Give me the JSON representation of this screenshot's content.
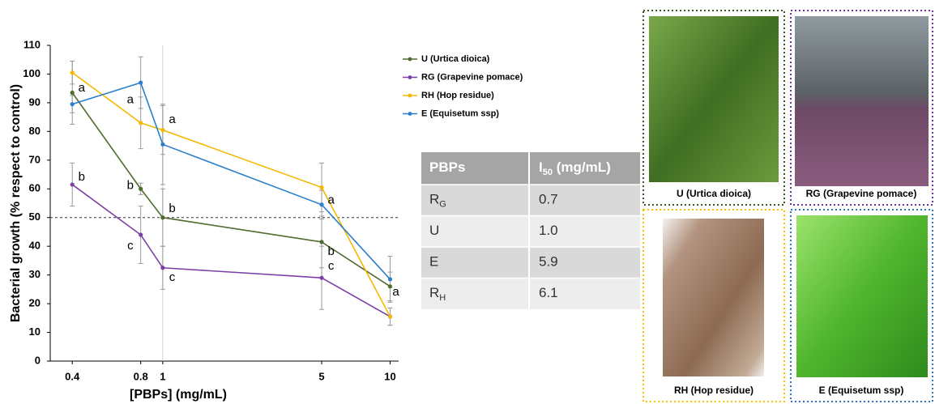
{
  "chart_data": {
    "type": "line",
    "xscale": "log",
    "x": [
      0.4,
      0.8,
      1,
      5,
      10
    ],
    "xlim": [
      0.32,
      10.9
    ],
    "xticks": [
      0.4,
      0.8,
      1,
      5,
      10
    ],
    "ylim": [
      0,
      110
    ],
    "yticks": [
      0,
      10,
      20,
      30,
      40,
      50,
      60,
      70,
      80,
      90,
      100,
      110
    ],
    "xlabel": "[PBPs] (mg/mL)",
    "ylabel": "Bacterial growth (% respect to control)",
    "hline": 50,
    "vline": 1,
    "series": [
      {
        "name": "U (Urtica dioica)",
        "color": "#4f6b2f",
        "values": [
          93.5,
          60,
          50,
          41.5,
          26
        ],
        "errors": [
          11,
          2,
          10,
          9,
          5
        ]
      },
      {
        "name": "RG (Grapevine pomace)",
        "color": "#7d3fa6",
        "values": [
          61.5,
          44,
          32.5,
          29,
          15.5
        ],
        "errors": [
          7.5,
          10,
          7.5,
          11,
          3
        ]
      },
      {
        "name": "RH (Hop residue)",
        "color": "#f5b800",
        "values": [
          100.5,
          83,
          80.5,
          60.5,
          15.5
        ],
        "errors": [
          4,
          9,
          8.5,
          8.5,
          3
        ]
      },
      {
        "name": "E (Equisetum ssp)",
        "color": "#2a7fc9",
        "values": [
          89.5,
          97,
          75.5,
          54.5,
          28.5
        ],
        "errors": [
          3,
          9,
          14,
          5,
          8
        ]
      }
    ],
    "annotations": [
      {
        "text": "a",
        "x": 0.44,
        "y": 95
      },
      {
        "text": "b",
        "x": 0.44,
        "y": 64
      },
      {
        "text": "a",
        "x": 0.72,
        "y": 91
      },
      {
        "text": "b",
        "x": 0.72,
        "y": 61
      },
      {
        "text": "c",
        "x": 0.72,
        "y": 40
      },
      {
        "text": "a",
        "x": 1.1,
        "y": 84
      },
      {
        "text": "b",
        "x": 1.1,
        "y": 53
      },
      {
        "text": "c",
        "x": 1.1,
        "y": 29
      },
      {
        "text": "a",
        "x": 5.5,
        "y": 56
      },
      {
        "text": "b",
        "x": 5.5,
        "y": 38
      },
      {
        "text": "c",
        "x": 5.5,
        "y": 33
      },
      {
        "text": "a",
        "x": 10.6,
        "y": 24
      }
    ]
  },
  "table": {
    "header": [
      {
        "text": "PBPs"
      },
      {
        "text": "I",
        "sub": "50",
        "after": " (mg/mL)"
      }
    ],
    "rows": [
      [
        {
          "text": "R",
          "sub": "G"
        },
        {
          "text": "0.7"
        }
      ],
      [
        {
          "text": "U"
        },
        {
          "text": "1.0"
        }
      ],
      [
        {
          "text": "E"
        },
        {
          "text": "5.9"
        }
      ],
      [
        {
          "text": "R",
          "sub": "H"
        },
        {
          "text": "6.1"
        }
      ]
    ]
  },
  "photos": [
    "U (Urtica dioica)",
    "RG (Grapevine pomace)",
    "RH (Hop residue)",
    "E (Equisetum ssp)"
  ]
}
